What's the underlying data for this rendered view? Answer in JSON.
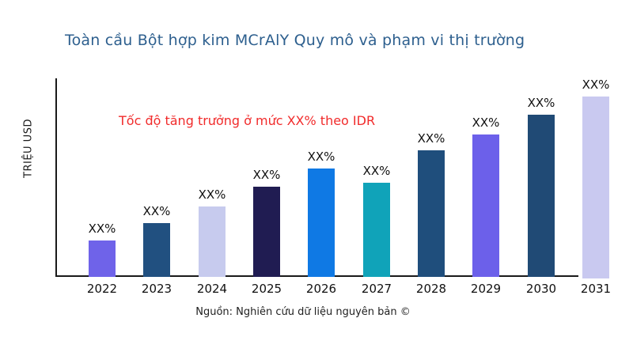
{
  "page": {
    "title": "Toàn cầu Bột hợp kim MCrAlY Quy mô và phạm vi thị trường",
    "title_color": "#2d5f8e",
    "annotation": "Tốc độ tăng trưởng ở mức XX% theo IDR",
    "annotation_color": "#f12b2b",
    "y_axis_label": "TRIỆU USD",
    "source_note": "Nguồn: Nghiên cứu dữ liệu nguyên bản ©"
  },
  "chart_data": {
    "type": "bar",
    "title": "Toàn cầu Bột hợp kim MCrAlY Quy mô và phạm vi thị trường",
    "xlabel": "",
    "ylabel": "TRIỆU USD",
    "categories": [
      "2022",
      "2023",
      "2024",
      "2025",
      "2026",
      "2027",
      "2028",
      "2029",
      "2030",
      "2031"
    ],
    "values": [
      20,
      30,
      39,
      50,
      60,
      52,
      70,
      79,
      90,
      100
    ],
    "values_note": "relative bar heights in % of tallest bar (2031); actual figures are masked as XX% in the chart",
    "bar_labels": [
      "XX%",
      "XX%",
      "XX%",
      "XX%",
      "XX%",
      "XX%",
      "XX%",
      "XX%",
      "XX%",
      "XX%"
    ],
    "bar_colors": [
      "#6f63e9",
      "#215080",
      "#c7cbee",
      "#201c52",
      "#0f79e4",
      "#10a3b9",
      "#1f4e7c",
      "#6c60ea",
      "#204a75",
      "#c9c9f0"
    ],
    "annotation": "Tốc độ tăng trưởng ở mức XX% theo IDR",
    "annotation_color": "#f12b2b",
    "ylim": [
      0,
      100
    ],
    "grid": false,
    "legend": false
  }
}
